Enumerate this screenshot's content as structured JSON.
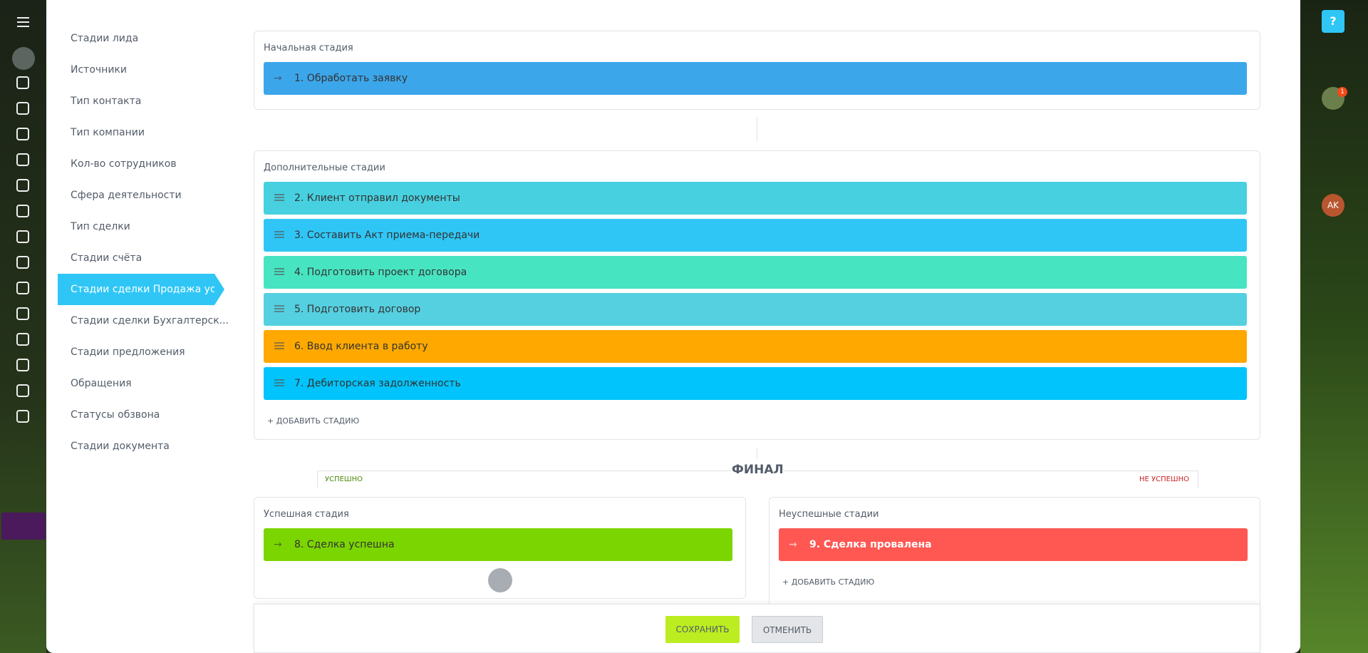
{
  "menu": {
    "items": [
      "Стадии лида",
      "Источники",
      "Тип контакта",
      "Тип компании",
      "Кол-во сотрудников",
      "Сфера деятельности",
      "Тип сделки",
      "Стадии счёта",
      "Стадии сделки Продажа ус...",
      "Стадии сделки Бухгалтерск...",
      "Стадии предложения",
      "Обращения",
      "Статусы обзвона",
      "Стадии документа"
    ],
    "active": 8
  },
  "initial": {
    "title": "Начальная стадия",
    "stage": {
      "label": "1. Обработать заявку",
      "color": "#3ca6ea"
    }
  },
  "extra": {
    "title": "Дополнительные стадии",
    "stages": [
      {
        "label": "2. Клиент отправил документы",
        "color": "#47d0e0"
      },
      {
        "label": "3. Составить Акт приема-передачи",
        "color": "#2fc6f6"
      },
      {
        "label": "4. Подготовить проект договора",
        "color": "#47e4c2"
      },
      {
        "label": "5. Подготовить договор",
        "color": "#55d0e0"
      },
      {
        "label": "6. Ввод клиента в работу",
        "color": "#ffa900"
      },
      {
        "label": "7. Дебиторская задолженность",
        "color": "#00c4fb"
      }
    ],
    "add": "+ ДОБАВИТЬ СТАДИЮ"
  },
  "final": {
    "title": "ФИНАЛ",
    "success_tag": "УСПЕШНО",
    "fail_tag": "НЕ УСПЕШНО",
    "success": {
      "title": "Успешная стадия",
      "stage": {
        "label": "8. Сделка успешна",
        "color": "#7bd500"
      }
    },
    "fail": {
      "title": "Неуспешные стадии",
      "stage": {
        "label": "9. Сделка провалена",
        "color": "#ff5752"
      },
      "add": "+ ДОБАВИТЬ СТАДИЮ"
    }
  },
  "buttons": {
    "save": "СОХРАНИТЬ",
    "cancel": "ОТМЕНИТЬ"
  },
  "topbar": {
    "avatar": "AK",
    "notifications": "1"
  }
}
